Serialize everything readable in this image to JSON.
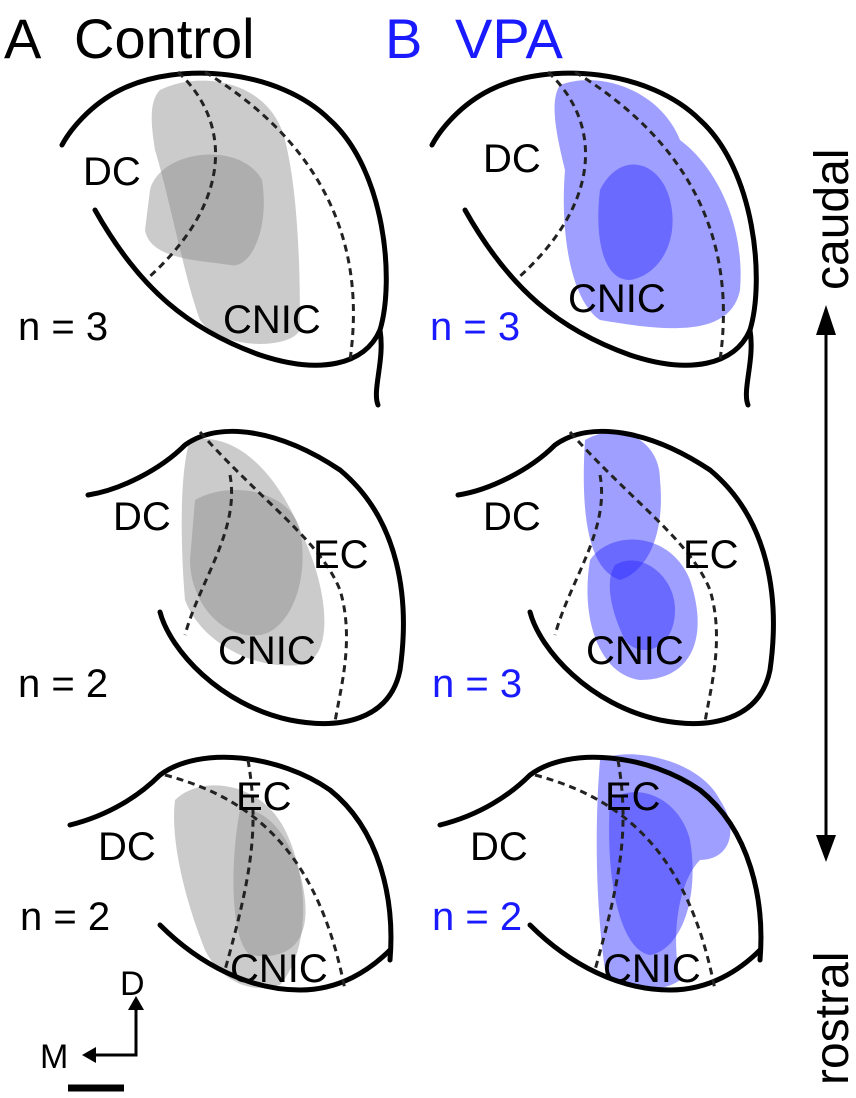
{
  "panels": [
    {
      "letter": "A",
      "title": "Control",
      "rows": [
        {
          "dc": "DC",
          "cnic": "CNIC",
          "n": "n = 3"
        },
        {
          "dc": "DC",
          "ec": "EC",
          "cnic": "CNIC",
          "n": "n = 2"
        },
        {
          "dc": "DC",
          "ec": "EC",
          "cnic": "CNIC",
          "n": "n = 2"
        }
      ]
    },
    {
      "letter": "B",
      "title": "VPA",
      "rows": [
        {
          "dc": "DC",
          "cnic": "CNIC",
          "n": "n = 3"
        },
        {
          "dc": "DC",
          "ec": "EC",
          "cnic": "CNIC",
          "n": "n = 3"
        },
        {
          "dc": "DC",
          "ec": "EC",
          "cnic": "CNIC",
          "n": "n = 2"
        }
      ]
    }
  ],
  "axis": {
    "top": "caudal",
    "bottom": "rostral"
  },
  "orientation": {
    "dorsal": "D",
    "medial": "M"
  }
}
